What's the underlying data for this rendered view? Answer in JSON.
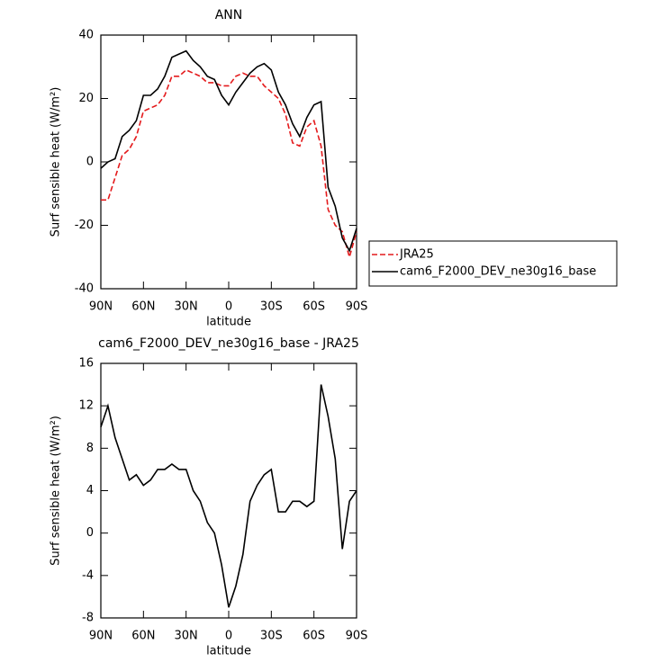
{
  "chart_data": [
    {
      "type": "line",
      "title": "ANN",
      "xlabel": "latitude",
      "ylabel": "Surf sensible heat (W/m²)",
      "x": [
        90,
        85,
        80,
        75,
        70,
        65,
        60,
        55,
        50,
        45,
        40,
        35,
        30,
        25,
        20,
        15,
        10,
        5,
        0,
        -5,
        -10,
        -15,
        -20,
        -25,
        -30,
        -35,
        -40,
        -45,
        -50,
        -55,
        -60,
        -65,
        -70,
        -75,
        -80,
        -85,
        -90
      ],
      "xlim": [
        90,
        -90
      ],
      "xticks": [
        {
          "value": 90,
          "label": "90N"
        },
        {
          "value": 60,
          "label": "60N"
        },
        {
          "value": 30,
          "label": "30N"
        },
        0,
        {
          "value": -30,
          "label": "30S"
        },
        {
          "value": -60,
          "label": "60S"
        },
        {
          "value": -90,
          "label": "90S"
        }
      ],
      "ylim": [
        -40,
        40
      ],
      "yticks": [
        -40,
        -20,
        0,
        20,
        40
      ],
      "legend": "right",
      "series": [
        {
          "name": "JRA25",
          "color": "#e41a1c",
          "dashed": true,
          "values": [
            -12,
            -12,
            -5,
            2,
            4,
            8,
            16,
            17,
            18,
            21,
            27,
            27,
            29,
            28,
            27,
            25,
            25,
            24,
            24,
            27,
            28,
            27,
            27,
            24,
            22,
            20,
            15,
            6,
            5,
            11,
            13,
            5,
            -15,
            -20,
            -22,
            -30,
            -22
          ]
        },
        {
          "name": "cam6_F2000_DEV_ne30g16_base",
          "color": "#000000",
          "dashed": false,
          "values": [
            -2,
            0,
            1,
            8,
            10,
            13,
            21,
            21,
            23,
            27,
            33,
            34,
            35,
            32,
            30,
            27,
            26,
            21,
            18,
            22,
            25,
            28,
            30,
            31,
            29,
            22,
            18,
            12,
            8,
            14,
            18,
            19,
            -8,
            -14,
            -24,
            -28,
            -21
          ]
        }
      ]
    },
    {
      "type": "line",
      "title": "cam6_F2000_DEV_ne30g16_base - JRA25",
      "xlabel": "latitude",
      "ylabel": "Surf sensible heat (W/m²)",
      "x": [
        90,
        85,
        80,
        75,
        70,
        65,
        60,
        55,
        50,
        45,
        40,
        35,
        30,
        25,
        20,
        15,
        10,
        5,
        0,
        -5,
        -10,
        -15,
        -20,
        -25,
        -30,
        -35,
        -40,
        -45,
        -50,
        -55,
        -60,
        -65,
        -70,
        -75,
        -80,
        -85,
        -90
      ],
      "xlim": [
        90,
        -90
      ],
      "xticks": [
        {
          "value": 90,
          "label": "90N"
        },
        {
          "value": 60,
          "label": "60N"
        },
        {
          "value": 30,
          "label": "30N"
        },
        0,
        {
          "value": -30,
          "label": "30S"
        },
        {
          "value": -60,
          "label": "60S"
        },
        {
          "value": -90,
          "label": "90S"
        }
      ],
      "ylim": [
        -8,
        16
      ],
      "yticks": [
        -8,
        -4,
        0,
        4,
        8,
        12,
        16
      ],
      "series": [
        {
          "color": "#000000",
          "dashed": false,
          "values": [
            10,
            12,
            9,
            7,
            5,
            5.5,
            4.5,
            5,
            6,
            6,
            6.5,
            6,
            6,
            4,
            3,
            1,
            0,
            -3,
            -7,
            -5,
            -2,
            3,
            4.5,
            5.5,
            6,
            2,
            2,
            3,
            3,
            2.5,
            3,
            14,
            11,
            7,
            -1.5,
            3,
            4
          ]
        }
      ]
    }
  ]
}
